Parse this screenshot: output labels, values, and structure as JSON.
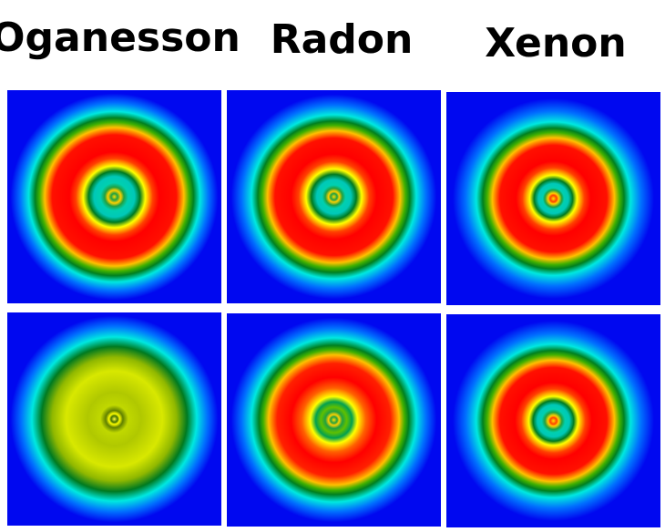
{
  "columns": [
    {
      "title": "Oganesson"
    },
    {
      "title": "Radon"
    },
    {
      "title": "Xenon"
    }
  ]
}
